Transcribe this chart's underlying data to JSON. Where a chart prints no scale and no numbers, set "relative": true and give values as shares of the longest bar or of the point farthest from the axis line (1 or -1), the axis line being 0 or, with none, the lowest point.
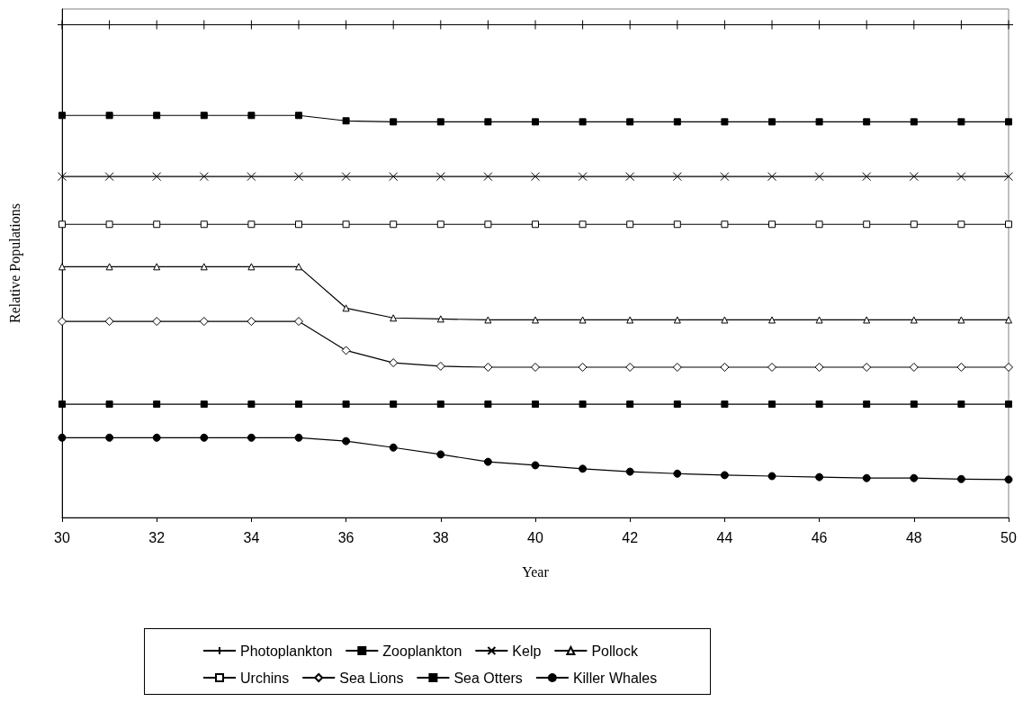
{
  "chart_data": {
    "type": "line",
    "relative": true,
    "xlabel": "Year",
    "ylabel": "Relative Populations",
    "x": [
      30,
      31,
      32,
      33,
      34,
      35,
      36,
      37,
      38,
      39,
      40,
      41,
      42,
      43,
      44,
      45,
      46,
      47,
      48,
      49,
      50
    ],
    "xlim": [
      30,
      50
    ],
    "xticks": [
      30,
      32,
      34,
      36,
      38,
      40,
      42,
      44,
      46,
      48,
      50
    ],
    "legend": "bottom",
    "grid": false,
    "line_style": "solid",
    "series": [
      {
        "name": "Photoplankton",
        "color": "#000000",
        "marker": "plus",
        "values": [
          1,
          1,
          1,
          1,
          1,
          1,
          1,
          1,
          1,
          1,
          1,
          1,
          1,
          1,
          1,
          1,
          1,
          1,
          1,
          1,
          1
        ]
      },
      {
        "name": "Zooplankton",
        "color": "#000000",
        "marker": "square",
        "values": [
          0.816,
          0.816,
          0.816,
          0.816,
          0.816,
          0.816,
          0.805,
          0.803,
          0.803,
          0.803,
          0.803,
          0.803,
          0.803,
          0.803,
          0.803,
          0.803,
          0.803,
          0.803,
          0.803,
          0.803,
          0.803
        ]
      },
      {
        "name": "Kelp",
        "color": "#000000",
        "marker": "cross",
        "values": [
          0.692,
          0.692,
          0.692,
          0.692,
          0.692,
          0.692,
          0.692,
          0.692,
          0.692,
          0.692,
          0.692,
          0.692,
          0.692,
          0.692,
          0.692,
          0.692,
          0.692,
          0.692,
          0.692,
          0.692,
          0.692
        ]
      },
      {
        "name": "Pollock",
        "color": "#000000",
        "marker": "triangle_open",
        "values": [
          0.509,
          0.509,
          0.509,
          0.509,
          0.509,
          0.509,
          0.425,
          0.405,
          0.403,
          0.401,
          0.401,
          0.401,
          0.401,
          0.401,
          0.401,
          0.401,
          0.401,
          0.401,
          0.401,
          0.401,
          0.401
        ]
      },
      {
        "name": "Urchins",
        "color": "#000000",
        "marker": "square_open",
        "values": [
          0.595,
          0.595,
          0.595,
          0.595,
          0.595,
          0.595,
          0.595,
          0.595,
          0.595,
          0.595,
          0.595,
          0.595,
          0.595,
          0.595,
          0.595,
          0.595,
          0.595,
          0.595,
          0.595,
          0.595,
          0.595
        ]
      },
      {
        "name": "Sea Lions",
        "color": "#000000",
        "marker": "diamond_open",
        "values": [
          0.398,
          0.398,
          0.398,
          0.398,
          0.398,
          0.398,
          0.339,
          0.314,
          0.307,
          0.305,
          0.305,
          0.305,
          0.305,
          0.305,
          0.305,
          0.305,
          0.305,
          0.305,
          0.305,
          0.305,
          0.305
        ]
      },
      {
        "name": "Sea Otters",
        "color": "#000000",
        "marker": "square",
        "values": [
          0.23,
          0.23,
          0.23,
          0.23,
          0.23,
          0.23,
          0.23,
          0.23,
          0.23,
          0.23,
          0.23,
          0.23,
          0.23,
          0.23,
          0.23,
          0.23,
          0.23,
          0.23,
          0.23,
          0.23,
          0.23
        ]
      },
      {
        "name": "Killer Whales",
        "color": "#000000",
        "marker": "circle",
        "values": [
          0.162,
          0.162,
          0.162,
          0.162,
          0.162,
          0.162,
          0.155,
          0.142,
          0.128,
          0.113,
          0.106,
          0.099,
          0.093,
          0.089,
          0.086,
          0.084,
          0.082,
          0.08,
          0.08,
          0.078,
          0.077
        ]
      }
    ]
  }
}
